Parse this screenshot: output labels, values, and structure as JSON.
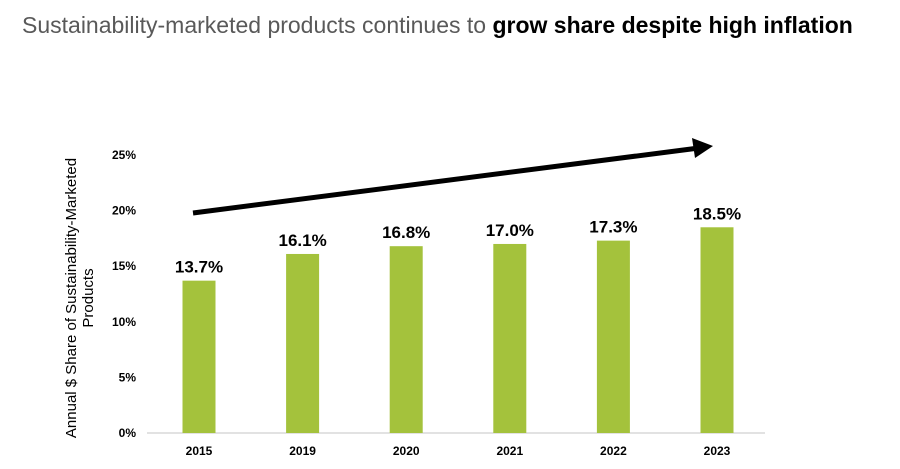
{
  "title": {
    "regular": "Sustainability-marketed products continues to ",
    "bold": "grow share despite high inflation"
  },
  "chart_data": {
    "type": "bar",
    "title": "Sustainability-marketed products continues to grow share despite high inflation",
    "ylabel_lines": [
      "Annual $ Share of Sustainability-Marketed",
      "Products"
    ],
    "xlabel": "",
    "categories": [
      "2015",
      "2019",
      "2020",
      "2021",
      "2022",
      "2023"
    ],
    "values": [
      13.7,
      16.1,
      16.8,
      17.0,
      17.3,
      18.5
    ],
    "data_labels": [
      "13.7%",
      "16.1%",
      "16.8%",
      "17.0%",
      "17.3%",
      "18.5%"
    ],
    "yticks": [
      "0%",
      "5%",
      "10%",
      "15%",
      "20%",
      "25%"
    ],
    "ylim": [
      0,
      25
    ],
    "grid": false,
    "bar_color": "#a4c23c",
    "annotation": "upward trend arrow"
  }
}
